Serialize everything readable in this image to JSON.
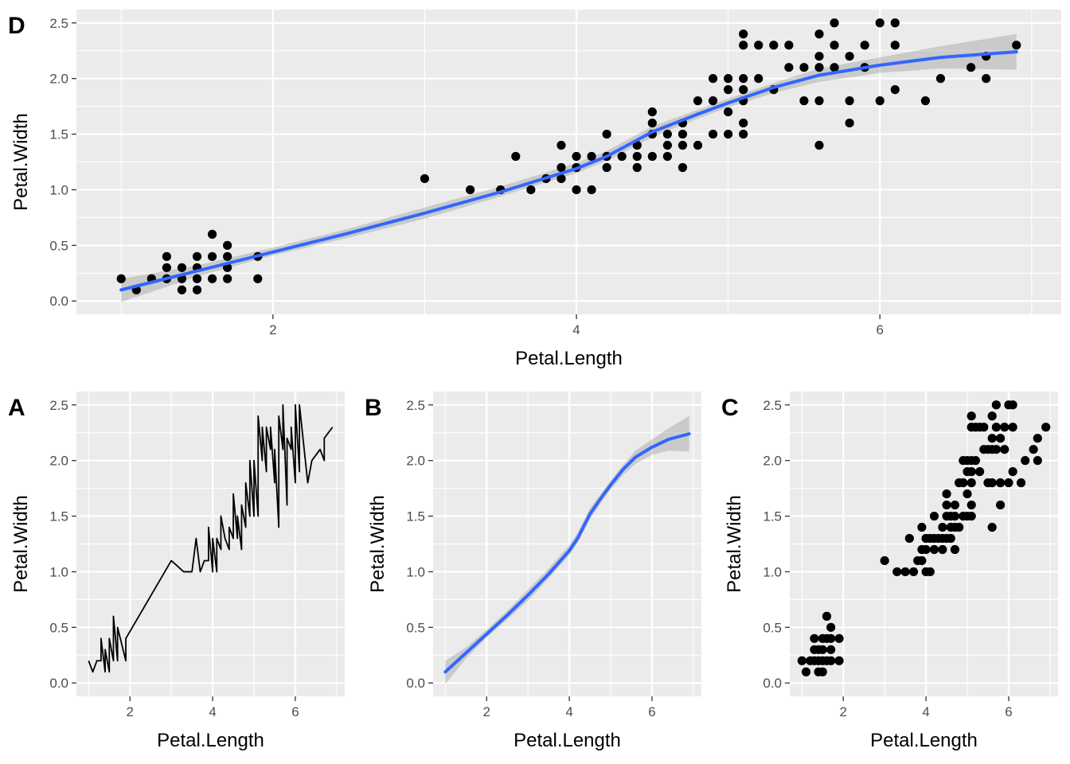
{
  "chart_data": [
    {
      "panel": "D",
      "type": "scatter",
      "layers": [
        "points",
        "smooth"
      ],
      "xlabel": "Petal.Length",
      "ylabel": "Petal.Width",
      "xlim": [
        0.705,
        7.195
      ],
      "ylim": [
        -0.12,
        2.62
      ],
      "xticks": [
        2,
        4,
        6
      ],
      "yticks": [
        0.0,
        0.5,
        1.0,
        1.5,
        2.0,
        2.5
      ]
    },
    {
      "panel": "A",
      "type": "line",
      "xlabel": "Petal.Length",
      "ylabel": "Petal.Width",
      "xlim": [
        0.705,
        7.195
      ],
      "ylim": [
        -0.12,
        2.62
      ],
      "xticks": [
        2,
        4,
        6
      ],
      "yticks": [
        0.0,
        0.5,
        1.0,
        1.5,
        2.0,
        2.5
      ]
    },
    {
      "panel": "B",
      "type": "line",
      "layers": [
        "smooth"
      ],
      "xlabel": "Petal.Length",
      "ylabel": "Petal.Width",
      "xlim": [
        0.705,
        7.195
      ],
      "ylim": [
        -0.12,
        2.62
      ],
      "xticks": [
        2,
        4,
        6
      ],
      "yticks": [
        0.0,
        0.5,
        1.0,
        1.5,
        2.0,
        2.5
      ]
    },
    {
      "panel": "C",
      "type": "scatter",
      "xlabel": "Petal.Length",
      "ylabel": "Petal.Width",
      "xlim": [
        0.705,
        7.195
      ],
      "ylim": [
        -0.12,
        2.62
      ],
      "xticks": [
        2,
        4,
        6
      ],
      "yticks": [
        0.0,
        0.5,
        1.0,
        1.5,
        2.0,
        2.5
      ]
    }
  ],
  "points": [
    [
      1.0,
      0.2
    ],
    [
      1.1,
      0.1
    ],
    [
      1.2,
      0.2
    ],
    [
      1.3,
      0.2
    ],
    [
      1.3,
      0.3
    ],
    [
      1.3,
      0.4
    ],
    [
      1.4,
      0.1
    ],
    [
      1.4,
      0.2
    ],
    [
      1.4,
      0.3
    ],
    [
      1.5,
      0.1
    ],
    [
      1.5,
      0.2
    ],
    [
      1.5,
      0.3
    ],
    [
      1.5,
      0.4
    ],
    [
      1.6,
      0.2
    ],
    [
      1.6,
      0.4
    ],
    [
      1.6,
      0.6
    ],
    [
      1.7,
      0.2
    ],
    [
      1.7,
      0.3
    ],
    [
      1.7,
      0.4
    ],
    [
      1.7,
      0.5
    ],
    [
      1.9,
      0.2
    ],
    [
      1.9,
      0.4
    ],
    [
      3.0,
      1.1
    ],
    [
      3.3,
      1.0
    ],
    [
      3.5,
      1.0
    ],
    [
      3.6,
      1.3
    ],
    [
      3.7,
      1.0
    ],
    [
      3.8,
      1.1
    ],
    [
      3.9,
      1.1
    ],
    [
      3.9,
      1.2
    ],
    [
      3.9,
      1.4
    ],
    [
      4.0,
      1.0
    ],
    [
      4.0,
      1.2
    ],
    [
      4.0,
      1.3
    ],
    [
      4.1,
      1.0
    ],
    [
      4.1,
      1.3
    ],
    [
      4.2,
      1.2
    ],
    [
      4.2,
      1.3
    ],
    [
      4.2,
      1.5
    ],
    [
      4.3,
      1.3
    ],
    [
      4.4,
      1.2
    ],
    [
      4.4,
      1.3
    ],
    [
      4.4,
      1.4
    ],
    [
      4.5,
      1.3
    ],
    [
      4.5,
      1.5
    ],
    [
      4.5,
      1.6
    ],
    [
      4.5,
      1.7
    ],
    [
      4.6,
      1.3
    ],
    [
      4.6,
      1.4
    ],
    [
      4.6,
      1.5
    ],
    [
      4.7,
      1.2
    ],
    [
      4.7,
      1.4
    ],
    [
      4.7,
      1.5
    ],
    [
      4.7,
      1.6
    ],
    [
      4.8,
      1.4
    ],
    [
      4.8,
      1.8
    ],
    [
      4.9,
      1.5
    ],
    [
      4.9,
      1.8
    ],
    [
      4.9,
      2.0
    ],
    [
      5.0,
      1.5
    ],
    [
      5.0,
      1.7
    ],
    [
      5.0,
      1.9
    ],
    [
      5.0,
      2.0
    ],
    [
      5.1,
      1.5
    ],
    [
      5.1,
      1.6
    ],
    [
      5.1,
      1.8
    ],
    [
      5.1,
      1.9
    ],
    [
      5.1,
      2.0
    ],
    [
      5.1,
      2.3
    ],
    [
      5.1,
      2.4
    ],
    [
      5.2,
      2.0
    ],
    [
      5.2,
      2.3
    ],
    [
      5.3,
      1.9
    ],
    [
      5.3,
      2.3
    ],
    [
      5.4,
      2.1
    ],
    [
      5.4,
      2.3
    ],
    [
      5.5,
      1.8
    ],
    [
      5.5,
      2.1
    ],
    [
      5.6,
      1.4
    ],
    [
      5.6,
      1.8
    ],
    [
      5.6,
      2.1
    ],
    [
      5.6,
      2.2
    ],
    [
      5.6,
      2.4
    ],
    [
      5.7,
      2.1
    ],
    [
      5.7,
      2.3
    ],
    [
      5.7,
      2.5
    ],
    [
      5.8,
      1.6
    ],
    [
      5.8,
      1.8
    ],
    [
      5.8,
      2.2
    ],
    [
      5.9,
      2.1
    ],
    [
      5.9,
      2.3
    ],
    [
      6.0,
      1.8
    ],
    [
      6.0,
      2.5
    ],
    [
      6.1,
      1.9
    ],
    [
      6.1,
      2.3
    ],
    [
      6.1,
      2.5
    ],
    [
      6.3,
      1.8
    ],
    [
      6.4,
      2.0
    ],
    [
      6.6,
      2.1
    ],
    [
      6.7,
      2.0
    ],
    [
      6.7,
      2.2
    ],
    [
      6.9,
      2.3
    ]
  ],
  "smooth": {
    "x": [
      1.0,
      1.5,
      2.0,
      2.5,
      3.0,
      3.5,
      4.0,
      4.2,
      4.5,
      4.8,
      5.0,
      5.3,
      5.6,
      6.0,
      6.4,
      6.9
    ],
    "y": [
      0.1,
      0.27,
      0.44,
      0.61,
      0.79,
      0.98,
      1.19,
      1.3,
      1.52,
      1.68,
      1.78,
      1.92,
      2.03,
      2.12,
      2.19,
      2.24
    ],
    "ylow": [
      -0.01,
      0.22,
      0.41,
      0.57,
      0.74,
      0.94,
      1.15,
      1.26,
      1.47,
      1.64,
      1.74,
      1.87,
      1.97,
      2.05,
      2.09,
      2.08
    ],
    "yhigh": [
      0.2,
      0.32,
      0.48,
      0.65,
      0.84,
      1.03,
      1.24,
      1.35,
      1.57,
      1.72,
      1.82,
      1.96,
      2.09,
      2.19,
      2.29,
      2.4
    ]
  },
  "colors": {
    "panel_bg": "#ebebeb",
    "grid": "#ffffff",
    "points": "#000000",
    "smooth_line": "#3366ff",
    "ribbon": "#999999"
  }
}
